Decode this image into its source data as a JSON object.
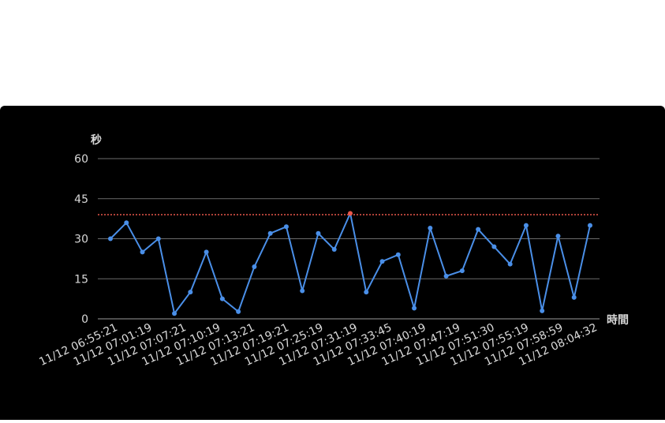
{
  "chart_data": {
    "type": "line",
    "ylabel": "秒",
    "xlabel": "時間",
    "ylim": [
      0,
      60
    ],
    "yticks": [
      0,
      15,
      30,
      45,
      60
    ],
    "grid": true,
    "threshold": 39,
    "x_tick_labels": [
      "11/12 06:55:21",
      "11/12 07:01:19",
      "11/12 07:07:21",
      "11/12 07:10:19",
      "11/12 07:13:21",
      "11/12 07:19:21",
      "11/12 07:25:19",
      "11/12 07:31:19",
      "11/12 07:33:45",
      "11/12 07:40:19",
      "11/12 07:47:19",
      "11/12 07:51:30",
      "11/12 07:55:19",
      "11/12 07:58:59",
      "11/12 08:04:32"
    ],
    "values": [
      30,
      36,
      25,
      30,
      2,
      10,
      25,
      7.5,
      2.7,
      19.5,
      32,
      34.5,
      10.5,
      32,
      26,
      39.5,
      10,
      21.5,
      24,
      4,
      34,
      16,
      18,
      33.5,
      27,
      20.5,
      35,
      3,
      31,
      8,
      35
    ],
    "highlight_index": 15,
    "colors": {
      "line": "#4a8fe8",
      "highlight": "#e8574a",
      "threshold": "#e8574a",
      "grid": "#6b6b6b",
      "text": "#d9d9d9"
    }
  }
}
